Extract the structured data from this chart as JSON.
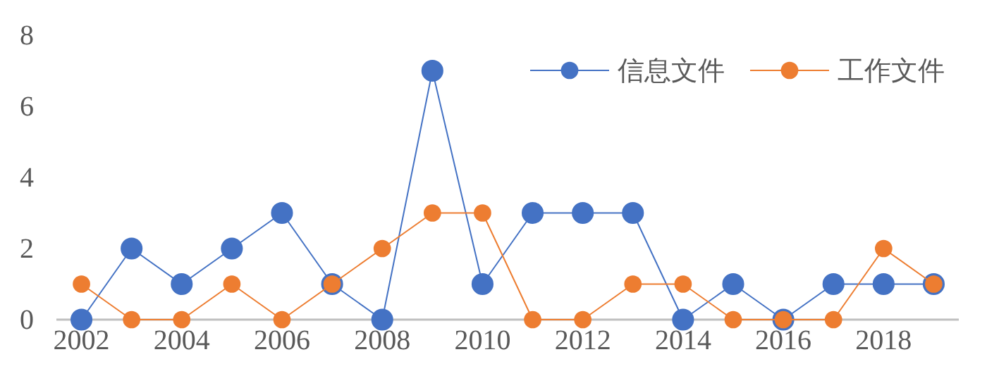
{
  "chart_data": {
    "type": "line",
    "categories": [
      "2002",
      null,
      "2004",
      null,
      "2006",
      null,
      "2008",
      null,
      "2010",
      null,
      "2012",
      null,
      "2014",
      null,
      "2016",
      null,
      "2018",
      null
    ],
    "series": [
      {
        "name": "信息文件",
        "color": "#4472c4",
        "values": [
          0,
          2,
          1,
          2,
          3,
          1,
          0,
          7,
          1,
          3,
          3,
          3,
          0,
          1,
          0,
          1,
          1,
          1
        ]
      },
      {
        "name": "工作文件",
        "color": "#ed7d31",
        "values": [
          1,
          0,
          0,
          1,
          0,
          1,
          2,
          3,
          3,
          0,
          0,
          1,
          1,
          0,
          0,
          0,
          2,
          1
        ]
      }
    ],
    "ylim": [
      0,
      8
    ],
    "yticks": [
      0,
      2,
      4,
      6,
      8
    ],
    "grid": false,
    "legend": "top right",
    "marker": "circle",
    "line_style": "solid"
  }
}
